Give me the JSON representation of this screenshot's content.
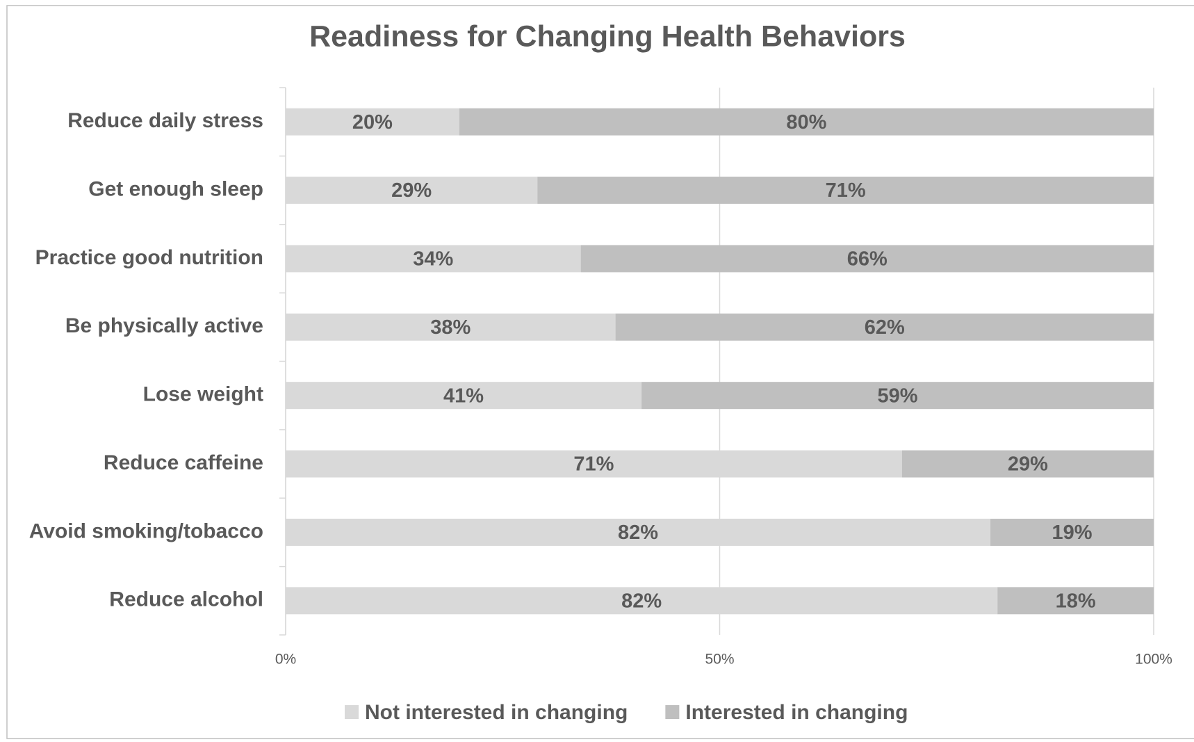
{
  "chart_data": {
    "type": "bar",
    "orientation": "horizontal",
    "stacked": "percent",
    "title": "Readiness for Changing Health Behaviors",
    "categories": [
      "Reduce daily stress",
      "Get enough sleep",
      "Practice good nutrition",
      "Be physically active",
      "Lose weight",
      "Reduce caffeine",
      "Avoid smoking/tobacco",
      "Reduce alcohol"
    ],
    "series": [
      {
        "name": "Not interested in changing",
        "color": "#d9d9d9",
        "values": [
          20,
          29,
          34,
          38,
          41,
          71,
          82,
          82
        ],
        "value_labels": [
          "20%",
          "29%",
          "34%",
          "38%",
          "41%",
          "71%",
          "82%",
          "82%"
        ]
      },
      {
        "name": "Interested in changing",
        "color": "#bfbfbf",
        "values": [
          80,
          71,
          66,
          62,
          59,
          29,
          19,
          18
        ],
        "value_labels": [
          "80%",
          "71%",
          "66%",
          "62%",
          "59%",
          "29%",
          "19%",
          "18%"
        ]
      }
    ],
    "xlim": [
      0,
      100
    ],
    "xticks": [
      {
        "value": 0,
        "label": "0%"
      },
      {
        "value": 50,
        "label": "50%"
      },
      {
        "value": 100,
        "label": "100%"
      }
    ],
    "grid": true,
    "legend": "bottom"
  }
}
